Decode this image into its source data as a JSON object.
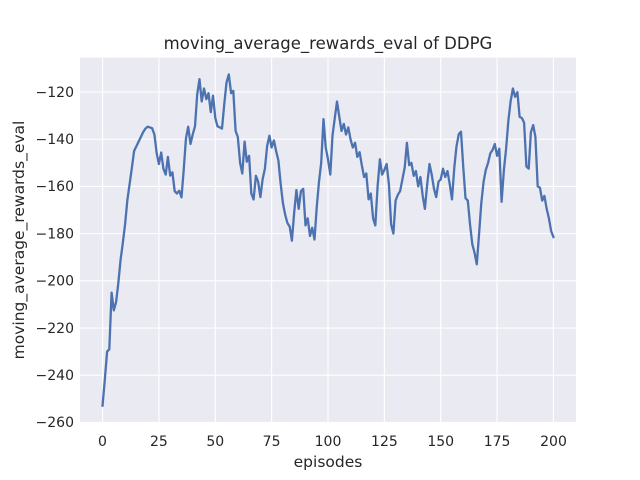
{
  "window": {
    "title": "moving_average_rewards_eval of DDPG"
  },
  "colors": {
    "figure_background": "#ffffff",
    "plot_background": "#eaeaf2",
    "grid": "#ffffff",
    "line": "#4c72b0",
    "text": "#262626"
  },
  "chart_data": {
    "type": "line",
    "title": "moving_average_rewards_eval of DDPG",
    "xlabel": "episodes",
    "ylabel": "moving_average_rewards_eval",
    "xlim": [
      -10,
      210
    ],
    "ylim": [
      -260,
      -105.4
    ],
    "x_ticks": [
      0,
      25,
      50,
      75,
      100,
      125,
      150,
      175,
      200
    ],
    "y_ticks": [
      -120,
      -140,
      -160,
      -180,
      -200,
      -220,
      -240,
      -260
    ],
    "grid": true,
    "legend": false,
    "series": [
      {
        "name": "moving_average_rewards_eval",
        "x": [
          0,
          1,
          2,
          3,
          4,
          5,
          6,
          7,
          8,
          9,
          10,
          11,
          12,
          13,
          14,
          15,
          16,
          17,
          18,
          19,
          20,
          21,
          22,
          23,
          24,
          25,
          26,
          27,
          28,
          29,
          30,
          31,
          32,
          33,
          34,
          35,
          36,
          37,
          38,
          39,
          40,
          41,
          42,
          43,
          44,
          45,
          46,
          47,
          48,
          49,
          50,
          51,
          52,
          53,
          54,
          55,
          56,
          57,
          58,
          59,
          60,
          61,
          62,
          63,
          64,
          65,
          66,
          67,
          68,
          69,
          70,
          71,
          72,
          73,
          74,
          75,
          76,
          77,
          78,
          79,
          80,
          81,
          82,
          83,
          84,
          85,
          86,
          87,
          88,
          89,
          90,
          91,
          92,
          93,
          94,
          95,
          96,
          97,
          98,
          99,
          100,
          101,
          102,
          103,
          104,
          105,
          106,
          107,
          108,
          109,
          110,
          111,
          112,
          113,
          114,
          115,
          116,
          117,
          118,
          119,
          120,
          121,
          122,
          123,
          124,
          125,
          126,
          127,
          128,
          129,
          130,
          131,
          132,
          133,
          134,
          135,
          136,
          137,
          138,
          139,
          140,
          141,
          142,
          143,
          144,
          145,
          146,
          147,
          148,
          149,
          150,
          151,
          152,
          153,
          154,
          155,
          156,
          157,
          158,
          159,
          160,
          161,
          162,
          163,
          164,
          165,
          166,
          167,
          168,
          169,
          170,
          171,
          172,
          173,
          174,
          175,
          176,
          177,
          178,
          179,
          180,
          181,
          182,
          183,
          184,
          185,
          186,
          187,
          188,
          189,
          190,
          191,
          192,
          193,
          194,
          195,
          196,
          197,
          198,
          199,
          200
        ],
        "y": [
          -253,
          -242,
          -230,
          -229,
          -205,
          -212.5,
          -209,
          -201,
          -191,
          -184,
          -176,
          -166,
          -159,
          -152,
          -145,
          -143,
          -141,
          -139,
          -137,
          -135.5,
          -134.7,
          -135,
          -135.3,
          -138,
          -146,
          -150.5,
          -145.6,
          -152.5,
          -155,
          -147.5,
          -155.4,
          -154,
          -162,
          -163,
          -161.8,
          -164.6,
          -153,
          -139.5,
          -134.7,
          -142,
          -138,
          -134.5,
          -121,
          -114.5,
          -124,
          -118.5,
          -123,
          -120.5,
          -128.5,
          -121.5,
          -131,
          -134.5,
          -135,
          -135.5,
          -125,
          -116,
          -112.5,
          -120.5,
          -119.5,
          -136.5,
          -139,
          -150,
          -154.5,
          -141,
          -149.5,
          -147,
          -163,
          -165.5,
          -155.5,
          -158,
          -164.5,
          -157,
          -152.5,
          -143,
          -138.5,
          -143.5,
          -140.5,
          -145,
          -149,
          -159,
          -167,
          -172,
          -175.5,
          -177,
          -183,
          -171,
          -161.5,
          -169.5,
          -162,
          -161,
          -176.5,
          -173.5,
          -181,
          -177.5,
          -182.5,
          -169,
          -158,
          -150,
          -131.5,
          -143.5,
          -148.5,
          -155,
          -138.5,
          -131,
          -124,
          -130.5,
          -136.5,
          -133.5,
          -138,
          -135,
          -140,
          -143.5,
          -141.5,
          -147.5,
          -145.5,
          -151,
          -156,
          -154.5,
          -165.5,
          -163,
          -173.5,
          -176.5,
          -160,
          -148.5,
          -155,
          -153,
          -150.5,
          -159,
          -176,
          -180,
          -166,
          -163.5,
          -162,
          -157,
          -152,
          -141.5,
          -151,
          -150,
          -155.5,
          -153.5,
          -160,
          -156,
          -164,
          -169.5,
          -159,
          -150.5,
          -155,
          -161,
          -164.5,
          -158,
          -157,
          -152.5,
          -156,
          -153.5,
          -159,
          -165.5,
          -152,
          -143,
          -137.8,
          -136.8,
          -152,
          -165,
          -166,
          -176,
          -184.5,
          -188,
          -193,
          -180,
          -167,
          -158,
          -153,
          -150,
          -146,
          -144.5,
          -142,
          -147,
          -144,
          -166.5,
          -153,
          -144,
          -132,
          -124,
          -118.5,
          -122,
          -120,
          -130.5,
          -131,
          -133,
          -151.5,
          -152.5,
          -137,
          -134,
          -139,
          -160,
          -160.5,
          -166,
          -164,
          -169.5,
          -173.5,
          -179,
          -181.5
        ]
      }
    ]
  }
}
